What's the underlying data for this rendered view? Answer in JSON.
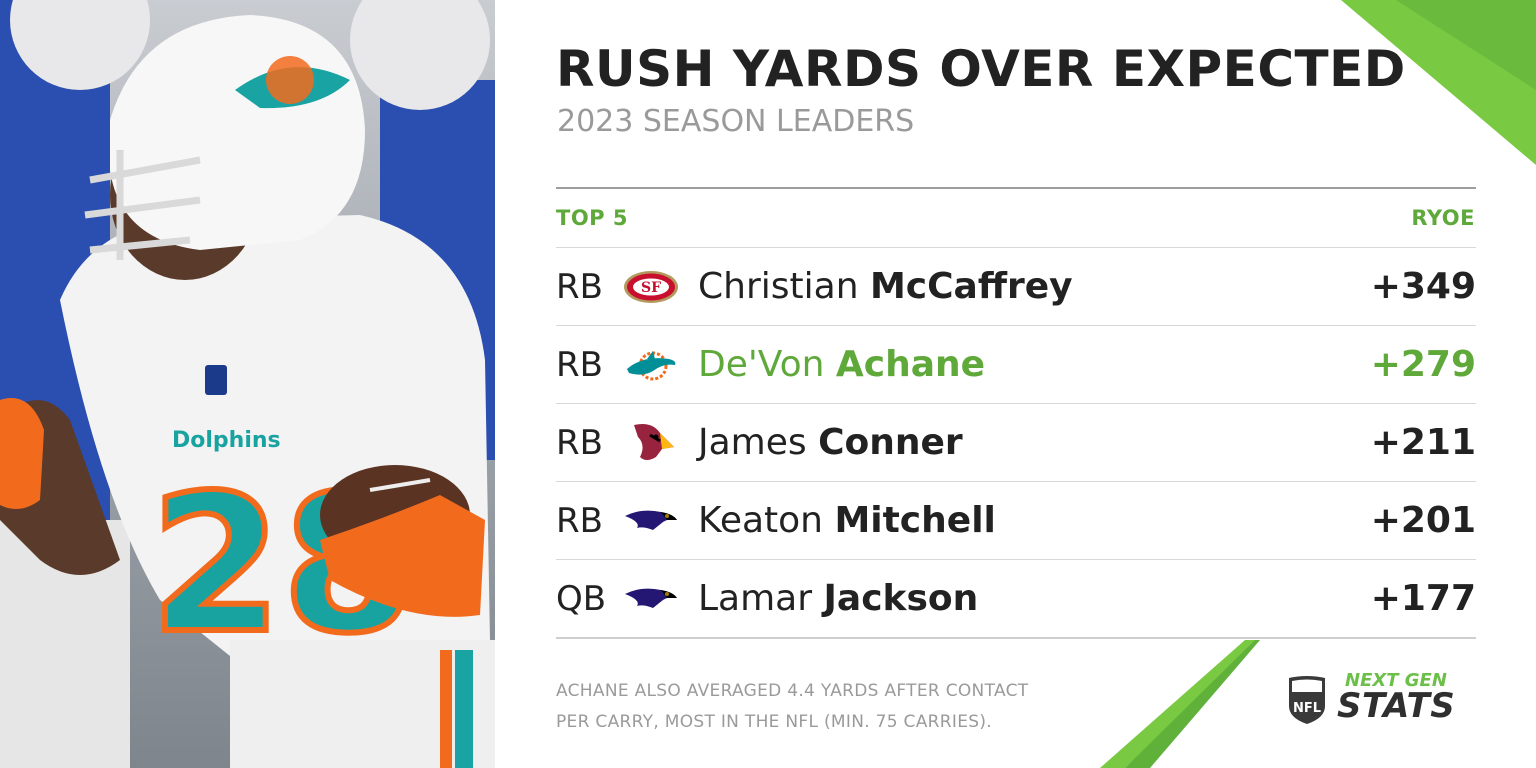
{
  "header": {
    "title": "RUSH YARDS OVER EXPECTED",
    "subtitle": "2023 SEASON LEADERS"
  },
  "table": {
    "left_header": "TOP 5",
    "right_header": "RYOE",
    "rows": [
      {
        "position": "RB",
        "team_logo": "49ers-logo",
        "first_name": "Christian",
        "last_name": "McCaffrey",
        "value": "+349",
        "highlight": false
      },
      {
        "position": "RB",
        "team_logo": "dolphins-logo",
        "first_name": "De'Von",
        "last_name": "Achane",
        "value": "+279",
        "highlight": true
      },
      {
        "position": "RB",
        "team_logo": "cardinals-logo",
        "first_name": "James",
        "last_name": "Conner",
        "value": "+211",
        "highlight": false
      },
      {
        "position": "RB",
        "team_logo": "ravens-logo",
        "first_name": "Keaton",
        "last_name": "Mitchell",
        "value": "+201",
        "highlight": false
      },
      {
        "position": "QB",
        "team_logo": "ravens-logo",
        "first_name": "Lamar",
        "last_name": "Jackson",
        "value": "+177",
        "highlight": false
      }
    ]
  },
  "footnote": {
    "line1": "ACHANE ALSO AVERAGED 4.4 YARDS AFTER CONTACT",
    "line2": "PER CARRY, MOST IN THE NFL (MIN. 75 CARRIES)."
  },
  "brand": {
    "top": "NEXT GEN",
    "bottom": "STATS",
    "shield_text": "NFL"
  },
  "colors": {
    "accent": "#5fa83a",
    "text": "#222222",
    "muted": "#9a9a9a"
  }
}
